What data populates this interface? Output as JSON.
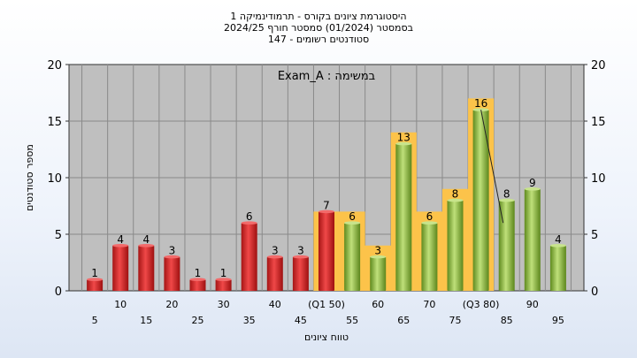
{
  "chart_data": {
    "type": "bar",
    "title_lines": [
      "היסטוגרמת ציונים בקורס - תרמודינמיקה 1",
      "בסמסטר  (01/2024)  סמסטר חורף 2024/25",
      "סטודנטים רשומים - 147"
    ],
    "xlabel": "טווח ציונים",
    "ylabel": "מספר סטודנטים",
    "inner_label": "במשימה : Exam_A",
    "ylim": [
      0,
      20
    ],
    "yticks": [
      0,
      5,
      10,
      15,
      20
    ],
    "categories": [
      5,
      10,
      15,
      20,
      25,
      30,
      35,
      40,
      45,
      50,
      55,
      60,
      65,
      70,
      75,
      80,
      85,
      90,
      95
    ],
    "tick_labels": [
      "5",
      "10",
      "15",
      "20",
      "25",
      "30",
      "35",
      "40",
      "45",
      "(Q1 50)",
      "55",
      "60",
      "65",
      "70",
      "75",
      "(Q3 80)",
      "85",
      "90",
      "95"
    ],
    "values": [
      1,
      4,
      4,
      3,
      1,
      1,
      6,
      3,
      3,
      7,
      6,
      3,
      13,
      6,
      8,
      16,
      8,
      9,
      4
    ],
    "fail_threshold": 55,
    "interquartile_range": [
      50,
      80
    ],
    "grid": true,
    "colors": {
      "fail_bar": "#dd2a2a",
      "pass_bar": "#8cbc3c",
      "quartile_band": "#fcc34a",
      "plot_background": "#bfbfbf"
    }
  }
}
